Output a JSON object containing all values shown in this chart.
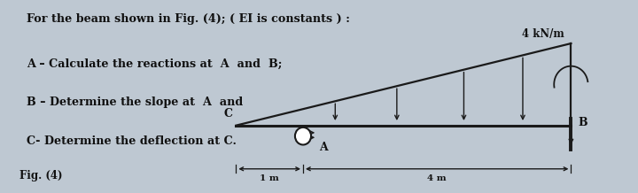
{
  "title_line1": "For the beam shown in Fig. (4); ( EI is constants ) :",
  "title_line2": "A – Calculate the reactions at  A  and  B;",
  "title_line3": "B – Determine the slope at  A  and",
  "title_line4": "C- Determine the deflection at C.",
  "fig_label": "Fig. (4)",
  "load_label": "4 kN/m",
  "point_C": "C",
  "point_A": "A",
  "point_B": "B",
  "dim1": "1 m",
  "dim2": "4 m",
  "bg_color": "#bec8d2",
  "text_color": "#111111",
  "beam_color": "#1a1a1a"
}
